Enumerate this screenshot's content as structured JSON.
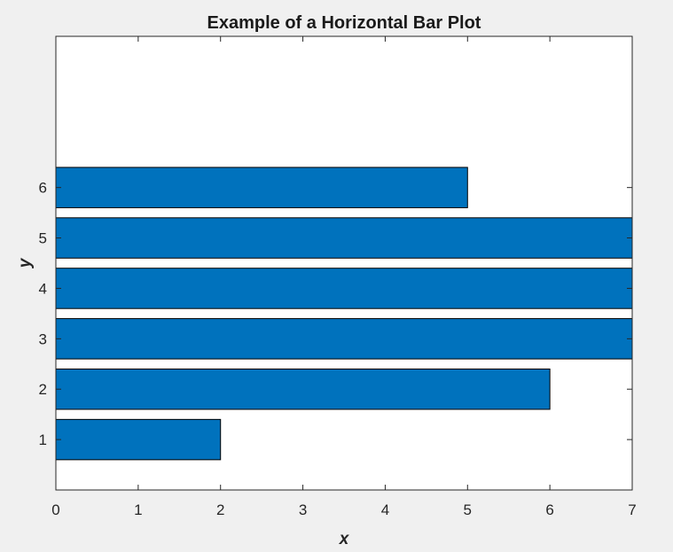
{
  "chart_data": {
    "type": "bar",
    "orientation": "horizontal",
    "title": "Example of a Horizontal Bar Plot",
    "xlabel": "x",
    "ylabel": "y",
    "categories": [
      1,
      2,
      3,
      4,
      5,
      6
    ],
    "values": [
      2,
      6,
      7,
      7,
      7,
      5
    ],
    "xlim": [
      0,
      7
    ],
    "ylim": [
      0,
      9
    ],
    "xticks": [
      0,
      1,
      2,
      3,
      4,
      5,
      6,
      7
    ],
    "yticks": [
      1,
      2,
      3,
      4,
      5,
      6
    ],
    "grid": false,
    "bar_color": "#0072bd",
    "bar_edge_color": "#000000"
  }
}
